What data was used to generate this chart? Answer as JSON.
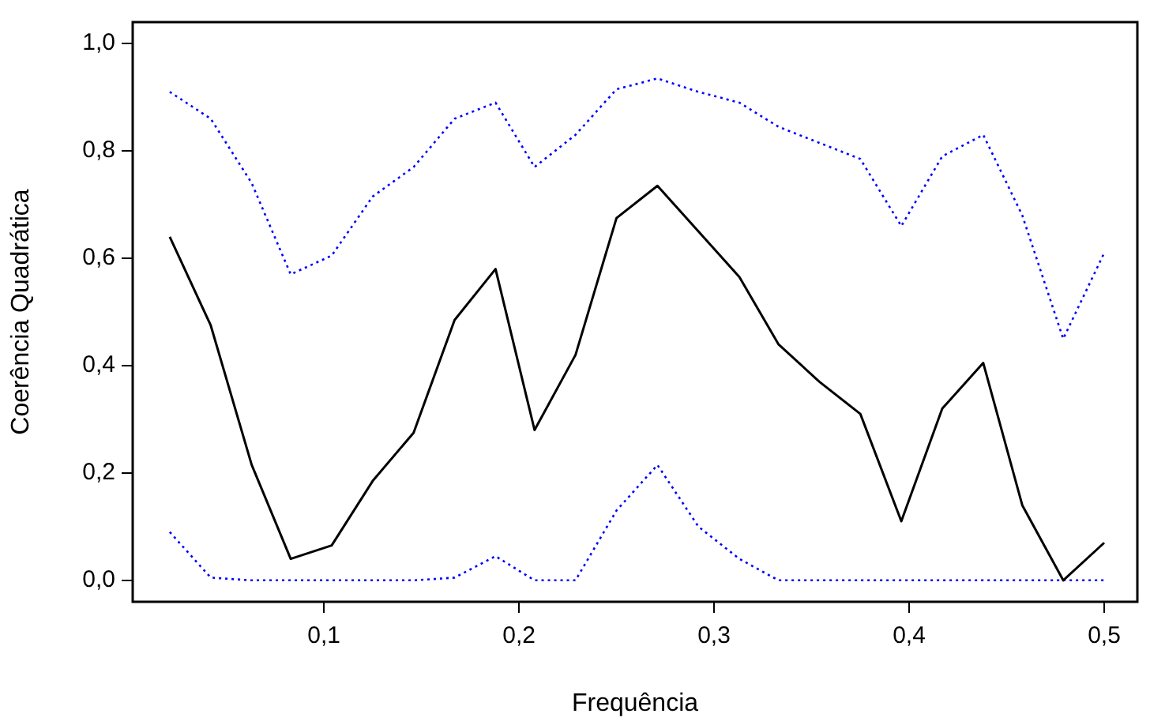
{
  "chart_data": {
    "type": "line",
    "xlabel": "Frequência",
    "ylabel": "Coerência Quadrática",
    "x": [
      0.021,
      0.042,
      0.063,
      0.083,
      0.104,
      0.125,
      0.146,
      0.167,
      0.188,
      0.208,
      0.229,
      0.25,
      0.271,
      0.292,
      0.313,
      0.333,
      0.354,
      0.375,
      0.396,
      0.417,
      0.438,
      0.458,
      0.479,
      0.5
    ],
    "series": [
      {
        "color": "#000000",
        "line_style": "solid",
        "values": [
          0.64,
          0.475,
          0.215,
          0.04,
          0.065,
          0.185,
          0.275,
          0.485,
          0.58,
          0.28,
          0.42,
          0.675,
          0.735,
          0.65,
          0.565,
          0.44,
          0.37,
          0.31,
          0.11,
          0.32,
          0.405,
          0.14,
          0.0,
          0.07
        ]
      },
      {
        "color": "#0000ff",
        "line_style": "dotted",
        "values": [
          0.91,
          0.86,
          0.74,
          0.57,
          0.605,
          0.715,
          0.77,
          0.86,
          0.89,
          0.77,
          0.83,
          0.915,
          0.935,
          0.91,
          0.89,
          0.845,
          0.815,
          0.785,
          0.66,
          0.79,
          0.83,
          0.68,
          0.45,
          0.61
        ]
      },
      {
        "color": "#0000ff",
        "line_style": "dotted",
        "values": [
          0.09,
          0.005,
          0,
          0,
          0,
          0,
          0,
          0.005,
          0.045,
          0,
          0,
          0.13,
          0.215,
          0.1,
          0.04,
          0,
          0,
          0,
          0,
          0,
          0,
          0,
          0,
          0
        ]
      }
    ],
    "xlim": [
      0.002,
      0.517
    ],
    "ylim": [
      -0.04,
      1.04
    ],
    "xticks": [
      {
        "value": 0.1,
        "label": "0,1"
      },
      {
        "value": 0.2,
        "label": "0,2"
      },
      {
        "value": 0.3,
        "label": "0,3"
      },
      {
        "value": 0.4,
        "label": "0,4"
      },
      {
        "value": 0.5,
        "label": "0,5"
      }
    ],
    "yticks": [
      {
        "value": 0,
        "label": "0,0"
      },
      {
        "value": 0.2,
        "label": "0,2"
      },
      {
        "value": 0.4,
        "label": "0,4"
      },
      {
        "value": 0.6,
        "label": "0,6"
      },
      {
        "value": 0.8,
        "label": "0,8"
      },
      {
        "value": 1,
        "label": "1,0"
      }
    ],
    "grid": false,
    "legend": false,
    "marker": "none"
  }
}
